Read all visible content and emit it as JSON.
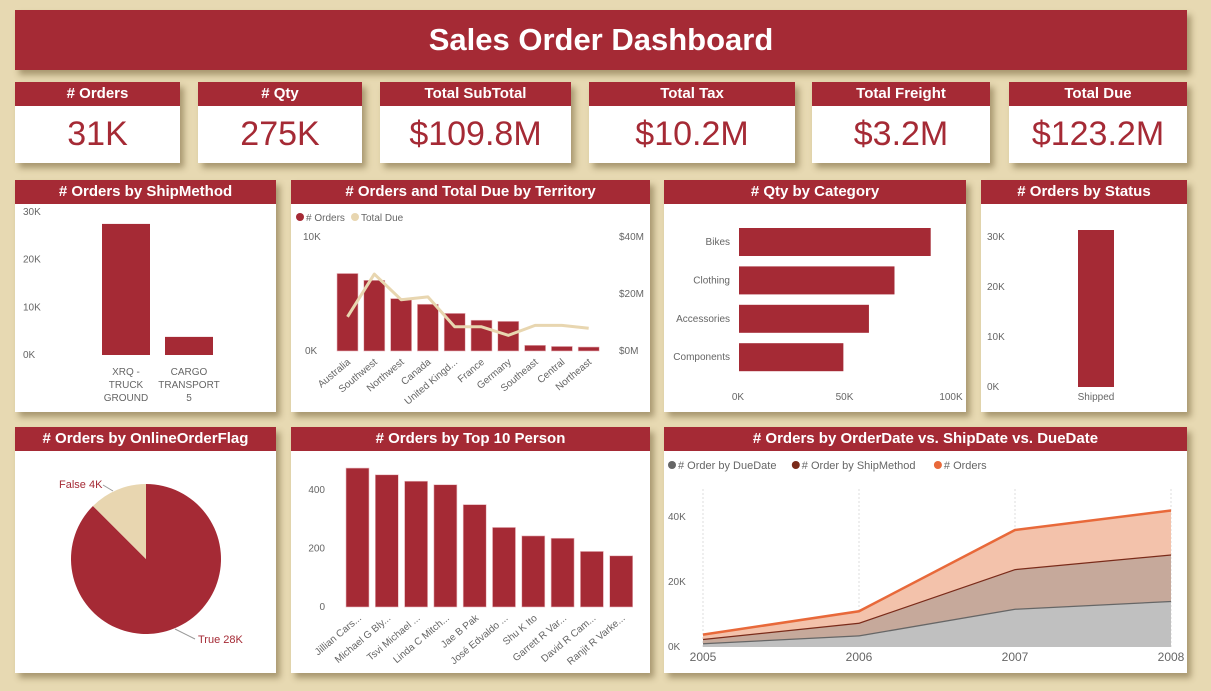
{
  "title": "Sales Order Dashboard",
  "kpis": [
    {
      "label": "# Orders",
      "value": "31K"
    },
    {
      "label": "# Qty",
      "value": "275K"
    },
    {
      "label": "Total SubTotal",
      "value": "$109.8M"
    },
    {
      "label": "Total Tax",
      "value": "$10.2M"
    },
    {
      "label": "Total Freight",
      "value": "$3.2M"
    },
    {
      "label": "Total Due",
      "value": "$123.2M"
    }
  ],
  "colors": {
    "primary": "#a52a35",
    "secondary": "#e8d6b0",
    "background": "#e7d9b2"
  },
  "chart_data": [
    {
      "id": "shipmethod",
      "type": "bar",
      "title": "# Orders by ShipMethod",
      "categories": [
        [
          "XRQ -",
          "TRUCK",
          "GROUND"
        ],
        [
          "CARGO",
          "TRANSPORT",
          "5"
        ]
      ],
      "values": [
        27500,
        3800
      ],
      "yticks": [
        "0K",
        "10K",
        "20K",
        "30K"
      ],
      "ylim": [
        0,
        30000
      ]
    },
    {
      "id": "territory",
      "type": "bar+line",
      "title": "# Orders and Total Due by Territory",
      "legend": [
        "# Orders",
        "Total Due"
      ],
      "categories": [
        "Australia",
        "Southwest",
        "Northwest",
        "Canada",
        "United Kingd...",
        "France",
        "Germany",
        "Southeast",
        "Central",
        "Northeast"
      ],
      "series": [
        {
          "name": "# Orders",
          "values": [
            6800,
            6200,
            4600,
            4100,
            3300,
            2700,
            2600,
            500,
            400,
            350
          ]
        },
        {
          "name": "Total Due",
          "values": [
            12,
            27,
            18,
            19,
            8.5,
            8.5,
            5.5,
            9,
            9,
            8
          ]
        }
      ],
      "yticks_left": [
        "0K",
        "10K"
      ],
      "yticks_right": [
        "$0M",
        "$20M",
        "$40M"
      ],
      "ylim_left": [
        0,
        10000
      ],
      "ylim_right": [
        0,
        40
      ]
    },
    {
      "id": "category",
      "type": "bar",
      "orientation": "horizontal",
      "title": "# Qty by Category",
      "categories": [
        "Bikes",
        "Clothing",
        "Accessories",
        "Components"
      ],
      "values": [
        90000,
        73000,
        61000,
        49000
      ],
      "xticks": [
        "0K",
        "50K",
        "100K"
      ],
      "xlim": [
        0,
        100000
      ]
    },
    {
      "id": "status",
      "type": "bar",
      "title": "# Orders by Status",
      "categories": [
        "Shipped"
      ],
      "values": [
        31400
      ],
      "yticks": [
        "0K",
        "10K",
        "20K",
        "30K"
      ],
      "ylim": [
        0,
        30000
      ]
    },
    {
      "id": "online",
      "type": "pie",
      "title": "# Orders by OnlineOrderFlag",
      "slices": [
        {
          "label": "True 28K",
          "value": 28
        },
        {
          "label": "False 4K",
          "value": 4
        }
      ]
    },
    {
      "id": "person",
      "type": "bar",
      "title": "# Orders by Top 10 Person",
      "categories": [
        "Jillian Cars...",
        "Michael G Bly...",
        "Tsvi Michael ...",
        "Linda C Mitch...",
        "Jae B Pak",
        "José Edvaldo ...",
        "Shu K Ito",
        "Garrett R Var...",
        "David R Cam...",
        "Ranjit R Varke..."
      ],
      "values": [
        475,
        452,
        430,
        418,
        350,
        272,
        243,
        235,
        190,
        175
      ],
      "yticks": [
        "0",
        "200",
        "400"
      ],
      "ylim": [
        0,
        400
      ]
    },
    {
      "id": "dates",
      "type": "area",
      "stacked": true,
      "title": "# Orders by OrderDate vs. ShipDate vs. DueDate",
      "x": [
        "2005",
        "2006",
        "2007",
        "2008"
      ],
      "series": [
        {
          "name": "# Order by DueDate",
          "color": "#666666",
          "values": [
            1200,
            3600,
            11800,
            14200
          ]
        },
        {
          "name": "# Order by ShipMethod",
          "color": "#7a2b1a",
          "values": [
            1300,
            3900,
            12200,
            14300
          ]
        },
        {
          "name": "# Orders",
          "color": "#e8693a",
          "values": [
            1300,
            3500,
            12000,
            13500
          ]
        }
      ],
      "yticks": [
        "0K",
        "20K",
        "40K"
      ],
      "ylim": [
        0,
        40000
      ]
    }
  ]
}
